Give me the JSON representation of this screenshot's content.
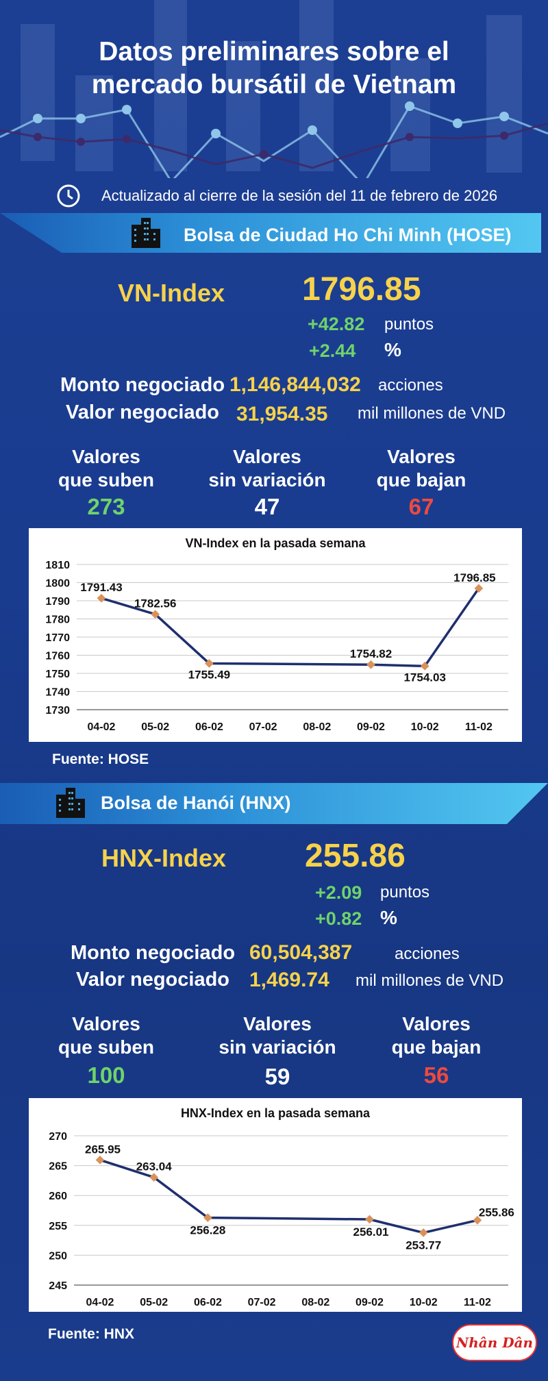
{
  "header": {
    "title_line1": "Datos preliminares sobre el",
    "title_line2": "mercado bursátil de Vietnam",
    "updated": "Actualizado al cierre de la sesión del 11 de febrero de 2026"
  },
  "hose": {
    "banner": "Bolsa de Ciudad Ho Chi Minh (HOSE)",
    "index_name": "VN-Index",
    "index_value": "1796.85",
    "change_points": "+42.82",
    "points_unit": "puntos",
    "change_pct": "+2.44",
    "pct_unit": "%",
    "volume_label": "Monto negociado",
    "volume_value": "1,146,844,032",
    "volume_unit": "acciones",
    "value_label": "Valor negociado",
    "value_value": "31,954.35",
    "value_unit": "mil millones de VND",
    "up_label_1": "Valores",
    "up_label_2": "que suben",
    "up_count": "273",
    "flat_label_1": "Valores",
    "flat_label_2": "sin variación",
    "flat_count": "47",
    "down_label_1": "Valores",
    "down_label_2": "que bajan",
    "down_count": "67",
    "source": "Fuente: HOSE"
  },
  "hnx": {
    "banner": "Bolsa de Hanói (HNX)",
    "index_name": "HNX-Index",
    "index_value": "255.86",
    "change_points": "+2.09",
    "points_unit": "puntos",
    "change_pct": "+0.82",
    "pct_unit": "%",
    "volume_label": "Monto negociado",
    "volume_value": "60,504,387",
    "volume_unit": "acciones",
    "value_label": "Valor negociado",
    "value_value": "1,469.74",
    "value_unit": "mil millones de VND",
    "up_label_1": "Valores",
    "up_label_2": "que suben",
    "up_count": "100",
    "flat_label_1": "Valores",
    "flat_label_2": "sin variación",
    "flat_count": "59",
    "down_label_1": "Valores",
    "down_label_2": "que bajan",
    "down_count": "56",
    "source": "Fuente:  HNX"
  },
  "logo_text": "Nhân Dân",
  "colors": {
    "background": "#1a3a8a",
    "gold": "#f7d24a",
    "up_green": "#6fd36a",
    "down_red": "#ee4a3e",
    "line": "#1f2f6e",
    "marker": "#d9925a",
    "banner": "#4fc3ef"
  },
  "chart_data": [
    {
      "type": "line",
      "title": "VN-Index en la pasada semana",
      "categories": [
        "04-02",
        "05-02",
        "06-02",
        "07-02",
        "08-02",
        "09-02",
        "10-02",
        "11-02"
      ],
      "points": [
        {
          "x": "04-02",
          "y": 1791.43,
          "label": "1791.43"
        },
        {
          "x": "05-02",
          "y": 1782.56,
          "label": "1782.56"
        },
        {
          "x": "06-02",
          "y": 1755.49,
          "label": "1755.49"
        },
        {
          "x": "09-02",
          "y": 1754.82,
          "label": "1754.82"
        },
        {
          "x": "10-02",
          "y": 1754.03,
          "label": "1754.03"
        },
        {
          "x": "11-02",
          "y": 1796.85,
          "label": "1796.85"
        }
      ],
      "yticks": [
        "1730",
        "1740",
        "1750",
        "1760",
        "1770",
        "1780",
        "1790",
        "1800",
        "1810"
      ],
      "ylim": [
        1730,
        1810
      ],
      "grid": true
    },
    {
      "type": "line",
      "title": "HNX-Index en la pasada semana",
      "categories": [
        "04-02",
        "05-02",
        "06-02",
        "07-02",
        "08-02",
        "09-02",
        "10-02",
        "11-02"
      ],
      "points": [
        {
          "x": "04-02",
          "y": 265.95,
          "label": "265.95"
        },
        {
          "x": "05-02",
          "y": 263.04,
          "label": "263.04"
        },
        {
          "x": "06-02",
          "y": 256.28,
          "label": "256.28"
        },
        {
          "x": "09-02",
          "y": 256.01,
          "label": "256.01"
        },
        {
          "x": "10-02",
          "y": 253.77,
          "label": "253.77"
        },
        {
          "x": "11-02",
          "y": 255.86,
          "label": "255.86"
        }
      ],
      "yticks": [
        "245",
        "250",
        "255",
        "260",
        "265",
        "270"
      ],
      "ylim": [
        245,
        270
      ],
      "grid": true
    }
  ]
}
